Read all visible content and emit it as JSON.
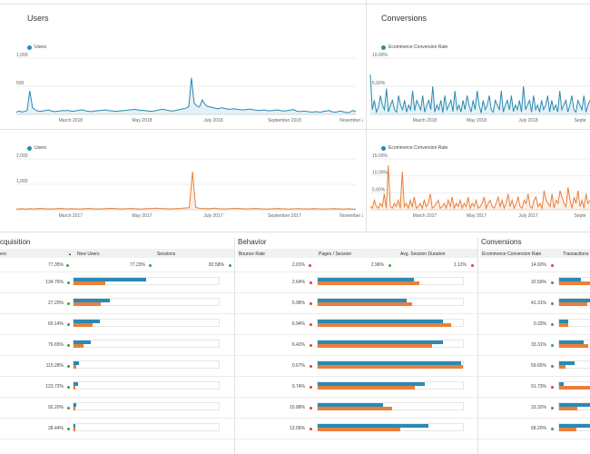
{
  "colors": {
    "blue": "#2a8ab3",
    "orange": "#e8803a",
    "green": "#3aa33a",
    "red": "#e0403a",
    "grid": "#eeeeee"
  },
  "panels": {
    "users_top": {
      "title": "Users",
      "legend": "Users",
      "y_ticks": [
        "1,000",
        "500"
      ],
      "x_ticks": [
        "March 2018",
        "May 2018",
        "July 2018",
        "September 2018",
        "November 2018"
      ]
    },
    "conv_top": {
      "title": "Conversions",
      "legend": "Ecommerce Conversion Rate",
      "y_ticks": [
        "10.00%",
        "5.00%"
      ],
      "x_ticks": [
        "March 2018",
        "May 2018",
        "July 2018",
        "Septe"
      ]
    },
    "users_bottom": {
      "legend": "Users",
      "y_ticks": [
        "2,000",
        "1,000"
      ],
      "x_ticks": [
        "March 2017",
        "May 2017",
        "July 2017",
        "September 2017",
        "November 2017"
      ]
    },
    "conv_bottom": {
      "legend": "Ecommerce Conversion Rate",
      "y_ticks": [
        "15.00%",
        "10.00%",
        "5.00%"
      ],
      "x_ticks": [
        "March 2017",
        "May 2017",
        "July 2017",
        "Septe"
      ]
    }
  },
  "chart_data": [
    {
      "type": "area",
      "name": "users_2018",
      "x_start": "2018-01",
      "x_ticks": [
        "March 2018",
        "May 2018",
        "July 2018",
        "September 2018",
        "November 2018"
      ],
      "ylim": [
        0,
        1000
      ],
      "values": [
        40,
        60,
        45,
        50,
        70,
        420,
        120,
        80,
        60,
        55,
        65,
        70,
        80,
        60,
        50,
        55,
        60,
        70,
        65,
        75,
        60,
        55,
        65,
        70,
        80,
        75,
        60,
        55,
        50,
        60,
        65,
        70,
        75,
        80,
        70,
        65,
        60,
        55,
        60,
        65,
        70,
        75,
        80,
        85,
        90,
        80,
        70,
        75,
        65,
        60,
        55,
        60,
        70,
        80,
        90,
        85,
        75,
        65,
        60,
        70,
        80,
        90,
        100,
        110,
        140,
        650,
        200,
        150,
        130,
        260,
        180,
        140,
        130,
        120,
        110,
        100,
        120,
        110,
        100,
        90,
        95,
        100,
        90,
        85,
        80,
        85,
        90,
        95,
        80,
        75,
        70,
        75,
        80,
        70,
        65,
        70,
        75,
        80,
        70,
        60,
        65,
        70,
        80,
        85,
        60,
        50,
        55,
        60,
        50,
        45,
        40,
        50,
        45,
        40,
        55,
        60,
        70,
        50,
        40,
        45,
        60,
        50,
        40,
        30,
        45,
        70,
        50
      ]
    },
    {
      "type": "area",
      "name": "conversion_2018",
      "ylim": [
        0,
        12
      ],
      "values": [
        8.5,
        1,
        3,
        0.5,
        1.5,
        4,
        2,
        1,
        5.5,
        0.5,
        2,
        3,
        1,
        0.5,
        4,
        2,
        1,
        3,
        0.5,
        2,
        1,
        5,
        0.8,
        3,
        2,
        1,
        4,
        0.5,
        2,
        3,
        1,
        6,
        0.5,
        2,
        1,
        3,
        0.4,
        4,
        1,
        2,
        3,
        0.6,
        5,
        1,
        2,
        0.5,
        3,
        1,
        4,
        2,
        0.5,
        3,
        1,
        5,
        2,
        0.3,
        3,
        1,
        2,
        4,
        1,
        0.5,
        3,
        2,
        1,
        5,
        0.5,
        2,
        3,
        1,
        4,
        0.6,
        2,
        1,
        3,
        0.5,
        6,
        1,
        2,
        3,
        0.5,
        4,
        1,
        2,
        0.5,
        3,
        1,
        2,
        4,
        0.5,
        3,
        1,
        2,
        0.5,
        5,
        1,
        2,
        3,
        0.5,
        2,
        4,
        1,
        0.5,
        3,
        2,
        1,
        4,
        0.5,
        2,
        3
      ]
    },
    {
      "type": "area",
      "name": "users_2017",
      "ylim": [
        0,
        2000
      ],
      "values": [
        30,
        35,
        40,
        30,
        45,
        40,
        35,
        50,
        45,
        40,
        35,
        30,
        40,
        45,
        50,
        40,
        35,
        45,
        40,
        35,
        30,
        40,
        50,
        45,
        40,
        35,
        30,
        40,
        45,
        50,
        55,
        45,
        40,
        35,
        40,
        45,
        50,
        40,
        35,
        30,
        40,
        45,
        50,
        55,
        60,
        50,
        45,
        40,
        35,
        40,
        45,
        50,
        60,
        70,
        80,
        1500,
        100,
        60,
        50,
        45,
        40,
        50,
        60,
        45,
        40,
        35,
        40,
        45,
        50,
        55,
        45,
        40,
        35,
        40,
        45,
        50,
        40,
        35,
        30,
        35,
        40,
        45,
        50,
        40,
        35,
        30,
        35,
        40,
        45,
        40,
        35,
        30,
        40,
        45,
        40,
        35,
        30,
        35,
        40,
        45,
        40,
        35,
        30,
        35,
        40,
        30,
        25
      ]
    },
    {
      "type": "area",
      "name": "conversion_2017",
      "ylim": [
        0,
        16
      ],
      "values": [
        1,
        0.5,
        3,
        1,
        0.5,
        2,
        1,
        5,
        0.5,
        14,
        1,
        0.5,
        2,
        1,
        3,
        0.5,
        12,
        1,
        2,
        0.5,
        3,
        1,
        4,
        0.5,
        1,
        2,
        0.5,
        3,
        1,
        2,
        5,
        0.5,
        1,
        2,
        3,
        0.5,
        1,
        2,
        0.5,
        3,
        1,
        4,
        0.5,
        2,
        1,
        3,
        0.5,
        2,
        1,
        4,
        0.5,
        2,
        1,
        3,
        0.5,
        1,
        2,
        4,
        0.5,
        2,
        3,
        1,
        0.5,
        2,
        4,
        1,
        3,
        0.5,
        2,
        5,
        1,
        3,
        0.5,
        2,
        4,
        1,
        0.5,
        3,
        2,
        5,
        1,
        0.5,
        3,
        4,
        1,
        2,
        0.5,
        6,
        3,
        2,
        1,
        5,
        0.5,
        3,
        2,
        6,
        4,
        2,
        1,
        7,
        3,
        0.5,
        4,
        2,
        6,
        1,
        3,
        0.5,
        5,
        2,
        3
      ]
    }
  ],
  "table": {
    "sections": {
      "acquisition": "cquisition",
      "behavior": "Behavior",
      "conversions": "Conversions"
    },
    "headers": {
      "users": "ers",
      "new_users": "New Users",
      "sessions": "Sessions",
      "bounce_rate": "Bounce Rate",
      "pages_session": "Pages / Session",
      "avg_duration": "Avg. Session Duration",
      "ecr": "Ecommerce Conversion Rate",
      "transactions": "Transactions"
    },
    "sort_icon": "▲",
    "totals": {
      "users": "77.35%",
      "new_users": "77.23%",
      "sessions": "82.58%",
      "bounce_rate": "2.01%",
      "pages_session": "2.96%",
      "avg_duration": "1.12%",
      "ecr": "14.60%"
    },
    "totals_status": {
      "users": "green",
      "new_users": "green",
      "sessions": "green",
      "bounce_rate": "red",
      "pages_session": "green",
      "avg_duration": "red",
      "ecr": "red"
    },
    "rows": [
      {
        "users": "134.76%",
        "bounce": "2.64%",
        "ecr": "32.59%",
        "users_s": "green",
        "bounce_s": "red",
        "ecr_s": "green",
        "nu": [
          0.5,
          0.22
        ],
        "ps": [
          0.66,
          0.7
        ],
        "tr": [
          0.7,
          1.0
        ]
      },
      {
        "users": "27.20%",
        "bounce": "5.98%",
        "ecr": "41.31%",
        "users_s": "green",
        "bounce_s": "red",
        "ecr_s": "green",
        "nu": [
          0.25,
          0.19
        ],
        "ps": [
          0.61,
          0.65
        ],
        "tr": [
          1.0,
          0.9
        ]
      },
      {
        "users": "60.14%",
        "bounce": "6.94%",
        "ecr": "0.33%",
        "users_s": "green",
        "bounce_s": "red",
        "ecr_s": "green",
        "nu": [
          0.18,
          0.13
        ],
        "ps": [
          0.86,
          0.92
        ],
        "tr": [
          0.3,
          0.3
        ]
      },
      {
        "users": "76.65%",
        "bounce": "6.42%",
        "ecr": "33.31%",
        "users_s": "green",
        "bounce_s": "red",
        "ecr_s": "green",
        "nu": [
          0.12,
          0.07
        ],
        "ps": [
          0.86,
          0.79
        ],
        "tr": [
          0.8,
          0.95
        ]
      },
      {
        "users": "115.28%",
        "bounce": "0.67%",
        "ecr": "59.65%",
        "users_s": "green",
        "bounce_s": "red",
        "ecr_s": "green",
        "nu": [
          0.04,
          0.02
        ],
        "ps": [
          0.99,
          1.0
        ],
        "tr": [
          0.5,
          0.2
        ]
      },
      {
        "users": "123.72%",
        "bounce": "9.74%",
        "ecr": "91.73%",
        "users_s": "green",
        "bounce_s": "red",
        "ecr_s": "red",
        "nu": [
          0.03,
          0.01
        ],
        "ps": [
          0.74,
          0.67
        ],
        "tr": [
          0.15,
          1.0
        ]
      },
      {
        "users": "92.20%",
        "bounce": "10.88%",
        "ecr": "33.32%",
        "users_s": "green",
        "bounce_s": "red",
        "ecr_s": "green",
        "nu": [
          0.02,
          0.01
        ],
        "ps": [
          0.45,
          0.51
        ],
        "tr": [
          1.0,
          0.6
        ]
      },
      {
        "users": "28.44%",
        "bounce": "13.06%",
        "ecr": "68.20%",
        "users_s": "green",
        "bounce_s": "red",
        "ecr_s": "green",
        "nu": [
          0.01,
          0.01
        ],
        "ps": [
          0.76,
          0.57
        ],
        "tr": [
          1.0,
          0.55
        ]
      }
    ]
  }
}
